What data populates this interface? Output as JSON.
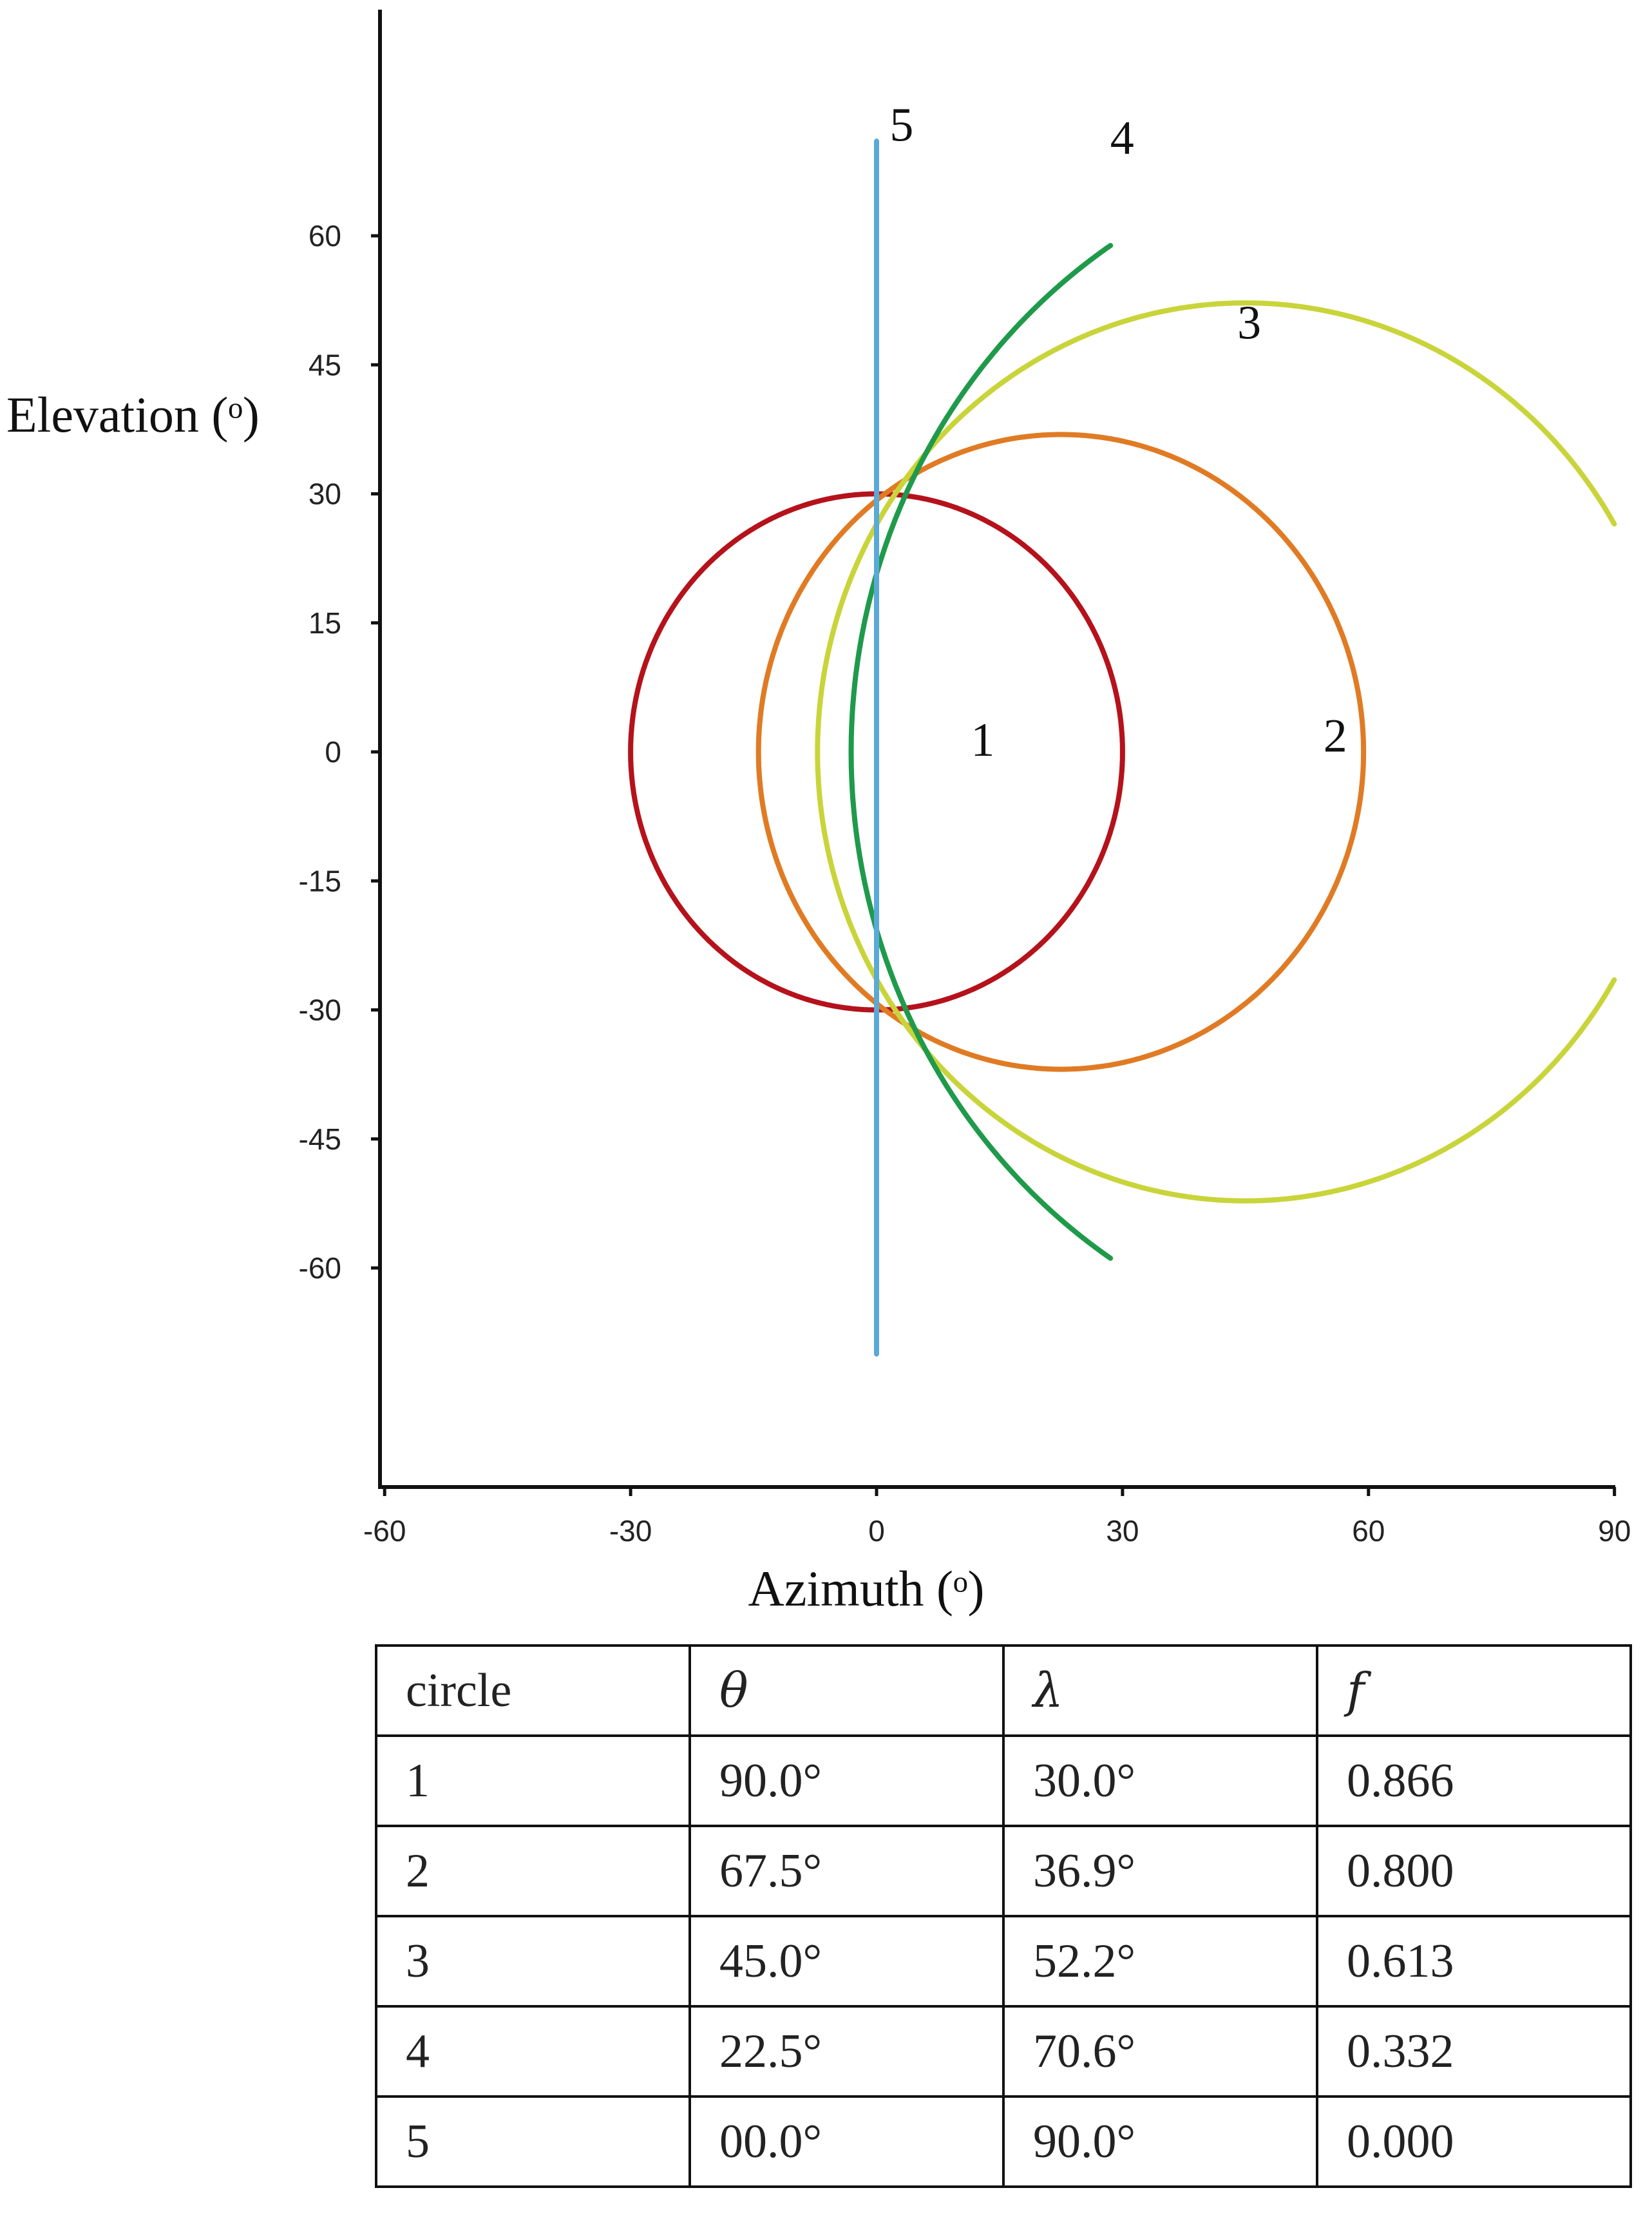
{
  "chart_data": {
    "type": "line",
    "title": "",
    "xlabel": "Azimuth (ᵒ)",
    "ylabel": "Elevation (ᵒ)",
    "xlim": [
      -60,
      90
    ],
    "ylim": [
      -75,
      75
    ],
    "xticks": [
      "-60",
      "-30",
      "0",
      "30",
      "60",
      "90"
    ],
    "yticks": [
      "60",
      "45",
      "30",
      "15",
      "0",
      "-15",
      "-30",
      "-45",
      "-60"
    ],
    "grid": false,
    "legend": "none",
    "series": [
      {
        "name": "1",
        "color": "#b5121b",
        "center_azimuth": 0,
        "radius_deg": 30.0,
        "azimuth_range": [
          -30,
          30
        ],
        "elevation_range": [
          -30,
          30
        ]
      },
      {
        "name": "2",
        "color": "#e07b24",
        "center_azimuth": 22.5,
        "radius_deg": 36.9,
        "azimuth_range": [
          -14.4,
          59.4
        ],
        "elevation_range": [
          -36.9,
          36.9
        ]
      },
      {
        "name": "3",
        "color": "#c9d43a",
        "center_azimuth": 45.0,
        "radius_deg": 52.2,
        "azimuth_range": [
          -7.2,
          90
        ],
        "elevation_range": [
          -52.2,
          52.2
        ]
      },
      {
        "name": "4",
        "color": "#1f9a4b",
        "center_azimuth": 67.5,
        "radius_deg": 70.6,
        "azimuth_range": [
          -3.1,
          29
        ],
        "elevation_range": [
          -70,
          70
        ]
      },
      {
        "name": "5",
        "color": "#5aa9d6",
        "azimuth": 0,
        "elevation_range": [
          -70,
          71
        ]
      }
    ],
    "table": {
      "headers": [
        "circle",
        "θ",
        "λ",
        "f"
      ],
      "rows": [
        [
          "1",
          "90.0°",
          "30.0°",
          "0.866"
        ],
        [
          "2",
          "67.5°",
          "36.9°",
          "0.800"
        ],
        [
          "3",
          "45.0°",
          "52.2°",
          "0.613"
        ],
        [
          "4",
          "22.5°",
          "70.6°",
          "0.332"
        ],
        [
          "5",
          "00.0°",
          "90.0°",
          "0.000"
        ]
      ]
    }
  }
}
